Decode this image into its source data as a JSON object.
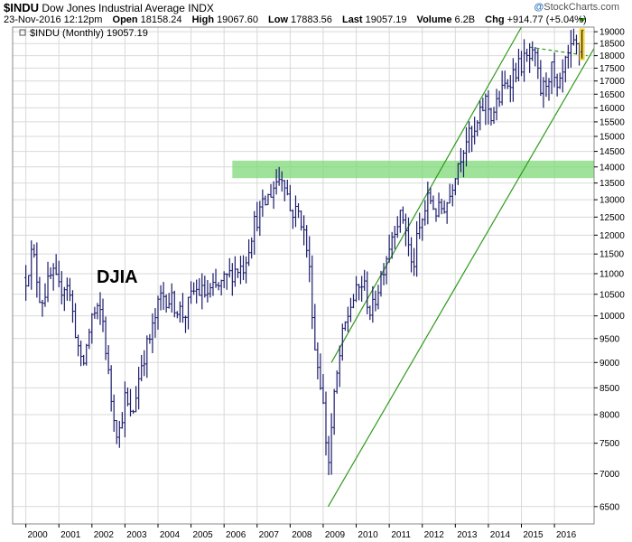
{
  "header": {
    "symbol": "$INDU",
    "name": "Dow Jones Industrial Average",
    "exchange": "INDX",
    "datetime": "23-Nov-2016 12:12pm",
    "open_label": "Open",
    "open": "18158.24",
    "high_label": "High",
    "high": "19067.60",
    "low_label": "Low",
    "low": "17883.56",
    "last_label": "Last",
    "last": "19057.19",
    "volume_label": "Volume",
    "volume": "6.2B",
    "chg_label": "Chg",
    "chg": "+914.77 (+5.04%)",
    "brand_at": "@",
    "brand": "StockCharts.com"
  },
  "colors": {
    "bars": "#1c1c6e",
    "trend": "#2e9b1c",
    "zone": "#7fd97a",
    "dashed": "#2e9b1c",
    "last_bar_highlight": "#f5d21a",
    "grid": "#d9d9d9"
  },
  "chart_data": {
    "type": "ohlc",
    "title": "$INDU (Monthly) 19057.19",
    "annotation": "DJIA",
    "yscale": "log",
    "ylim": [
      6250,
      19200
    ],
    "y_ticks": [
      "6500",
      "7000",
      "7500",
      "8000",
      "8500",
      "9000",
      "9500",
      "10000",
      "10500",
      "11000",
      "11500",
      "12000",
      "12500",
      "13000",
      "13500",
      "14000",
      "14500",
      "15000",
      "15500",
      "16000",
      "16500",
      "17000",
      "17500",
      "18000",
      "18500",
      "19000"
    ],
    "x_ticks": [
      "2000",
      "2001",
      "2002",
      "2003",
      "2004",
      "2005",
      "2006",
      "2007",
      "2008",
      "2009",
      "2010",
      "2011",
      "2012",
      "2013",
      "2014",
      "2015",
      "2016"
    ],
    "xlim": [
      1999.6,
      2017.2
    ],
    "grid": true,
    "resistance_zone": {
      "low": 13650,
      "high": 14200,
      "x_start": 2006.25
    },
    "trend_channel": {
      "upper": [
        [
          2009.25,
          9000
        ],
        [
          2015.0,
          19200
        ]
      ],
      "lower": [
        [
          2009.15,
          6500
        ],
        [
          2017.2,
          18300
        ]
      ]
    },
    "dashed_line": [
      [
        2015.25,
        18350
      ],
      [
        2017.0,
        18000
      ]
    ],
    "anchors": [
      [
        2000.0,
        10900
      ],
      [
        2000.2,
        11600
      ],
      [
        2000.45,
        10300
      ],
      [
        2000.8,
        11000
      ],
      [
        2001.0,
        10600
      ],
      [
        2001.25,
        10800
      ],
      [
        2001.7,
        8800
      ],
      [
        2002.0,
        10000
      ],
      [
        2002.3,
        10100
      ],
      [
        2002.55,
        8400
      ],
      [
        2002.8,
        7600
      ],
      [
        2003.0,
        8300
      ],
      [
        2003.2,
        7900
      ],
      [
        2003.5,
        9000
      ],
      [
        2003.8,
        9600
      ],
      [
        2004.1,
        10500
      ],
      [
        2004.4,
        10350
      ],
      [
        2004.8,
        10000
      ],
      [
        2005.1,
        10600
      ],
      [
        2005.5,
        10500
      ],
      [
        2005.9,
        10700
      ],
      [
        2006.3,
        11100
      ],
      [
        2006.6,
        11200
      ],
      [
        2006.9,
        12300
      ],
      [
        2007.3,
        13000
      ],
      [
        2007.6,
        13600
      ],
      [
        2007.8,
        13800
      ],
      [
        2008.0,
        12700
      ],
      [
        2008.3,
        12600
      ],
      [
        2008.55,
        11400
      ],
      [
        2008.75,
        9300
      ],
      [
        2008.95,
        8500
      ],
      [
        2009.15,
        7100
      ],
      [
        2009.35,
        8400
      ],
      [
        2009.6,
        9600
      ],
      [
        2009.85,
        10300
      ],
      [
        2010.2,
        10800
      ],
      [
        2010.45,
        10000
      ],
      [
        2010.8,
        11100
      ],
      [
        2011.2,
        12400
      ],
      [
        2011.45,
        12500
      ],
      [
        2011.7,
        11000
      ],
      [
        2011.85,
        11900
      ],
      [
        2012.2,
        13100
      ],
      [
        2012.45,
        12600
      ],
      [
        2012.8,
        13000
      ],
      [
        2013.0,
        13900
      ],
      [
        2013.35,
        15000
      ],
      [
        2013.55,
        14900
      ],
      [
        2013.9,
        16300
      ],
      [
        2014.1,
        15700
      ],
      [
        2014.5,
        16800
      ],
      [
        2014.8,
        17400
      ],
      [
        2015.1,
        17800
      ],
      [
        2015.4,
        17900
      ],
      [
        2015.6,
        16500
      ],
      [
        2015.9,
        17500
      ],
      [
        2016.1,
        16400
      ],
      [
        2016.35,
        17700
      ],
      [
        2016.6,
        18400
      ],
      [
        2016.8,
        18100
      ],
      [
        2016.95,
        19057
      ]
    ],
    "last_bar": {
      "open": 18158.24,
      "high": 19067.6,
      "low": 17883.56,
      "close": 19057.19
    }
  }
}
